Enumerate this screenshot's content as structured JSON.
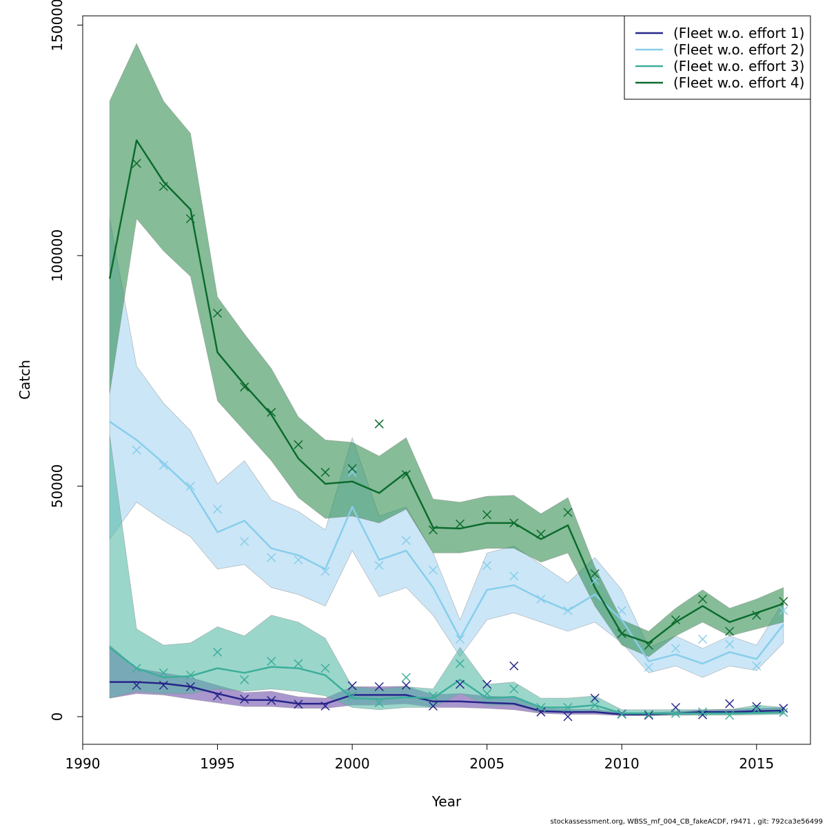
{
  "chart_data": {
    "type": "line",
    "xlabel": "Year",
    "ylabel": "Catch",
    "xlim": [
      1990,
      2017
    ],
    "ylim": [
      -6000,
      152000
    ],
    "xticks": [
      1990,
      1995,
      2000,
      2005,
      2010,
      2015
    ],
    "yticks": [
      0,
      50000,
      100000,
      150000
    ],
    "legend_position": "top-right",
    "x": [
      1991,
      1992,
      1993,
      1994,
      1995,
      1996,
      1997,
      1998,
      1999,
      2000,
      2001,
      2002,
      2003,
      2004,
      2005,
      2006,
      2007,
      2008,
      2009,
      2010,
      2011,
      2012,
      2013,
      2014,
      2015,
      2016
    ],
    "series": [
      {
        "name": "(Fleet w.o. effort 1)",
        "color": "#26248a",
        "band_color": "#6a4ba8",
        "fit": [
          7500,
          7500,
          7200,
          6500,
          5000,
          3600,
          3600,
          2800,
          2800,
          4700,
          4700,
          4700,
          3300,
          3300,
          3000,
          2800,
          1200,
          1000,
          1000,
          500,
          500,
          700,
          1000,
          1000,
          1200,
          1300
        ],
        "lower": [
          4000,
          5000,
          4700,
          3800,
          3000,
          2200,
          2200,
          1800,
          1800,
          2500,
          2500,
          2800,
          2000,
          2000,
          1800,
          1500,
          700,
          500,
          500,
          200,
          200,
          300,
          500,
          500,
          600,
          700
        ],
        "upper": [
          15500,
          10500,
          9500,
          8500,
          6800,
          5200,
          5500,
          4300,
          4000,
          6500,
          6500,
          6600,
          4800,
          5000,
          4500,
          4200,
          1800,
          1600,
          1600,
          900,
          900,
          1100,
          1500,
          1600,
          1800,
          2000
        ],
        "obs": [
          null,
          6800,
          6800,
          6500,
          4500,
          3800,
          3500,
          2700,
          2300,
          6700,
          6500,
          6800,
          2300,
          7000,
          7000,
          11000,
          1000,
          0,
          4000,
          600,
          300,
          2000,
          400,
          2800,
          2200,
          1800
        ]
      },
      {
        "name": "(Fleet w.o. effort 2)",
        "color": "#87ceeb",
        "band_color": "#a6d4f2",
        "fit": [
          64000,
          60000,
          55000,
          49500,
          40000,
          42500,
          36500,
          35000,
          32000,
          45500,
          34000,
          36000,
          28000,
          17000,
          27500,
          28500,
          25500,
          23000,
          26500,
          21000,
          12000,
          13500,
          11500,
          14000,
          12500,
          20000
        ],
        "lower": [
          38500,
          46500,
          42500,
          39000,
          32000,
          33000,
          28000,
          26500,
          24000,
          36000,
          26000,
          28000,
          22000,
          13000,
          21000,
          22500,
          20500,
          18500,
          20500,
          16000,
          9500,
          11000,
          8500,
          11000,
          10000,
          16000
        ],
        "upper": [
          108000,
          76000,
          68000,
          62000,
          50500,
          55500,
          47000,
          44500,
          40500,
          60500,
          43500,
          45500,
          35500,
          21000,
          35500,
          37000,
          33000,
          29000,
          34500,
          27500,
          15000,
          17500,
          14800,
          17500,
          15500,
          25000
        ],
        "obs": [
          null,
          57800,
          54500,
          50000,
          45000,
          38000,
          34500,
          34000,
          31500,
          53000,
          32800,
          38200,
          31800,
          16800,
          32800,
          30500,
          25500,
          23000,
          29500,
          23000,
          10700,
          14800,
          16800,
          15700,
          11000,
          23000
        ]
      },
      {
        "name": "(Fleet w.o. effort 3)",
        "color": "#3cae9a",
        "band_color": "#52b8a5",
        "fit": [
          15000,
          10500,
          8500,
          8800,
          10500,
          9500,
          10800,
          10500,
          9000,
          4000,
          3800,
          4200,
          4000,
          8000,
          4000,
          4300,
          2000,
          2000,
          2500,
          700,
          700,
          700,
          700,
          700,
          800,
          1000
        ],
        "lower": [
          4000,
          5500,
          5000,
          5000,
          6000,
          5500,
          6000,
          5500,
          4500,
          2000,
          1500,
          2000,
          2000,
          5000,
          2500,
          2500,
          1000,
          1000,
          1200,
          300,
          300,
          300,
          300,
          300,
          400,
          500
        ],
        "upper": [
          61000,
          19000,
          15500,
          16000,
          19500,
          17500,
          22000,
          20500,
          17000,
          6500,
          6000,
          6500,
          6000,
          15000,
          7000,
          7500,
          4000,
          4000,
          4500,
          1500,
          1500,
          1500,
          1500,
          1500,
          2500,
          2000
        ],
        "obs": [
          null,
          10500,
          9500,
          9000,
          14000,
          8000,
          12000,
          11500,
          10500,
          4500,
          3000,
          8500,
          4500,
          11500,
          5000,
          6000,
          2000,
          2000,
          2500,
          500,
          500,
          700,
          1000,
          300,
          1600,
          900
        ]
      },
      {
        "name": "(Fleet w.o. effort 4)",
        "color": "#0b6b2c",
        "band_color": "#2f8b4d",
        "fit": [
          95000,
          125000,
          116000,
          110000,
          79000,
          72000,
          65500,
          56000,
          50500,
          51000,
          48500,
          53000,
          41000,
          40800,
          42000,
          42000,
          38500,
          41500,
          28000,
          18000,
          16000,
          20500,
          24000,
          20500,
          22500,
          24500
        ],
        "lower": [
          70000,
          108000,
          101000,
          95500,
          68500,
          62000,
          55500,
          47500,
          43000,
          43500,
          42000,
          45000,
          35500,
          35500,
          36500,
          36500,
          33500,
          35500,
          24000,
          15500,
          13000,
          17500,
          20500,
          17500,
          19000,
          20500
        ],
        "upper": [
          133500,
          146000,
          133500,
          126500,
          91000,
          83000,
          75500,
          65000,
          60000,
          59500,
          56500,
          60500,
          47200,
          46500,
          47800,
          48000,
          44000,
          47500,
          32500,
          21000,
          18500,
          23500,
          27500,
          23500,
          25500,
          28000
        ],
        "obs": [
          null,
          120000,
          115000,
          108000,
          87500,
          71500,
          66000,
          59000,
          53000,
          53800,
          63500,
          52500,
          40500,
          41800,
          43800,
          42000,
          39600,
          44300,
          31000,
          18000,
          15500,
          21000,
          25500,
          18500,
          22000,
          25000
        ]
      }
    ]
  },
  "footer_text": "stockassessment.org, WBSS_mf_004_CB_fakeACDF, r9471 , git: 792ca3e56499"
}
